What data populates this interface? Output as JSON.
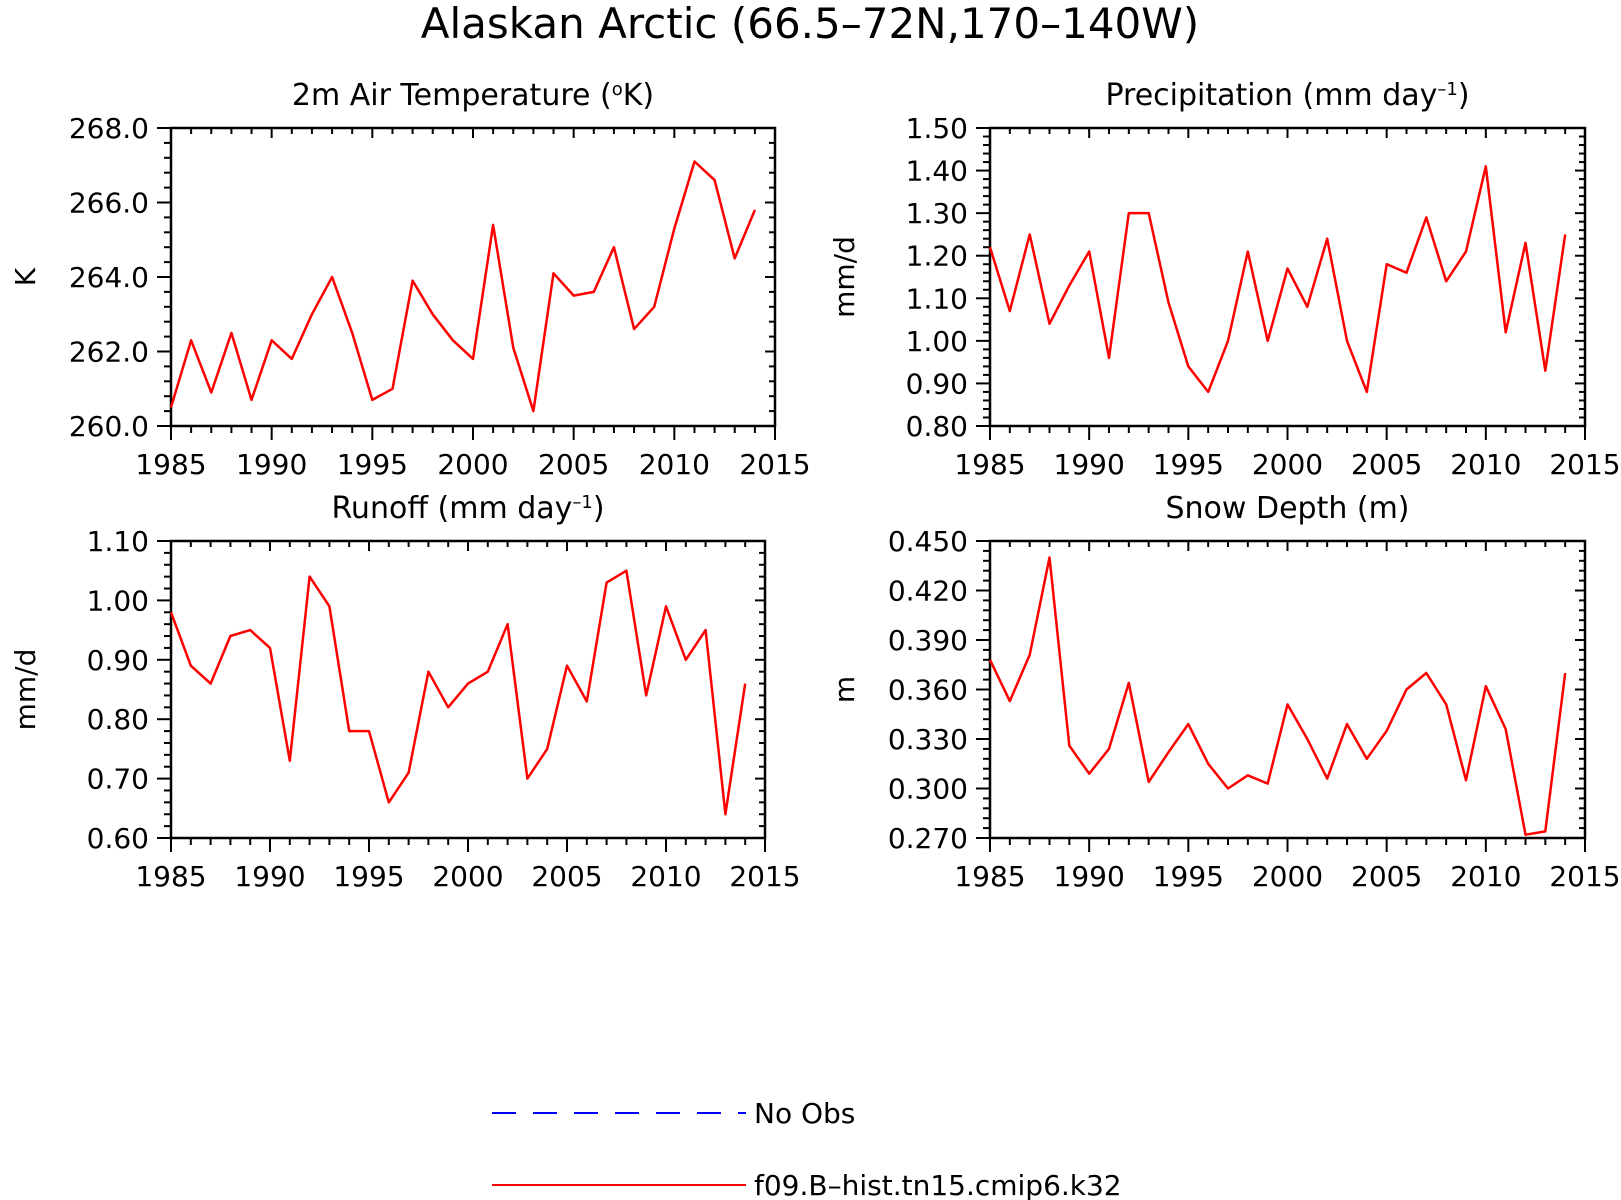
{
  "figure": {
    "title": "Alaskan Arctic (66.5–72N,170–140W)"
  },
  "legend": {
    "items": [
      {
        "label": "No Obs",
        "color": "#0000ff",
        "style": "dashed"
      },
      {
        "label": "f09.B–hist.tn15.cmip6.k32",
        "color": "#ff0000",
        "style": "solid"
      }
    ]
  },
  "chart_data": [
    {
      "type": "line",
      "title_prefix": "2m Air Temperature (",
      "title_unit_mid": "K",
      "title_suffix": ")",
      "title_degree": true,
      "xlabel": "",
      "ylabel": "K",
      "xlim": [
        1985,
        2015
      ],
      "ylim": [
        260.0,
        268.0
      ],
      "yticks": [
        "260.0",
        "262.0",
        "264.0",
        "266.0",
        "268.0"
      ],
      "xticks": [
        "1985",
        "1990",
        "1995",
        "2000",
        "2005",
        "2010",
        "2015"
      ],
      "x": [
        1985,
        1986,
        1987,
        1988,
        1989,
        1990,
        1991,
        1992,
        1993,
        1994,
        1995,
        1996,
        1997,
        1998,
        1999,
        2000,
        2001,
        2002,
        2003,
        2004,
        2005,
        2006,
        2007,
        2008,
        2009,
        2010,
        2011,
        2012,
        2013,
        2014
      ],
      "series": [
        {
          "name": "f09.B–hist.tn15.cmip6.k32",
          "color": "#ff0000",
          "values": [
            260.5,
            262.3,
            260.9,
            262.5,
            260.7,
            262.3,
            261.8,
            263.0,
            264.0,
            262.5,
            260.7,
            261.0,
            263.9,
            263.0,
            262.3,
            261.8,
            265.4,
            262.1,
            260.4,
            264.1,
            263.5,
            263.6,
            264.8,
            262.6,
            263.2,
            265.3,
            267.1,
            266.6,
            264.5,
            265.8
          ]
        }
      ]
    },
    {
      "type": "line",
      "title_prefix": "Precipitation (mm day",
      "title_sup": "–1",
      "title_suffix": ")",
      "xlabel": "",
      "ylabel": "mm/d",
      "xlim": [
        1985,
        2015
      ],
      "ylim": [
        0.8,
        1.5
      ],
      "yticks": [
        "0.80",
        "0.90",
        "1.00",
        "1.10",
        "1.20",
        "1.30",
        "1.40",
        "1.50"
      ],
      "xticks": [
        "1985",
        "1990",
        "1995",
        "2000",
        "2005",
        "2010",
        "2015"
      ],
      "x": [
        1985,
        1986,
        1987,
        1988,
        1989,
        1990,
        1991,
        1992,
        1993,
        1994,
        1995,
        1996,
        1997,
        1998,
        1999,
        2000,
        2001,
        2002,
        2003,
        2004,
        2005,
        2006,
        2007,
        2008,
        2009,
        2010,
        2011,
        2012,
        2013,
        2014
      ],
      "series": [
        {
          "name": "f09.B–hist.tn15.cmip6.k32",
          "color": "#ff0000",
          "values": [
            1.22,
            1.07,
            1.25,
            1.04,
            1.13,
            1.21,
            0.96,
            1.3,
            1.3,
            1.09,
            0.94,
            0.88,
            1.0,
            1.21,
            1.0,
            1.17,
            1.08,
            1.24,
            1.0,
            0.88,
            1.18,
            1.16,
            1.29,
            1.14,
            1.21,
            1.41,
            1.02,
            1.23,
            0.93,
            1.25
          ]
        }
      ]
    },
    {
      "type": "line",
      "title_prefix": "Runoff (mm day",
      "title_sup": "–1",
      "title_suffix": ")",
      "xlabel": "",
      "ylabel": "mm/d",
      "xlim": [
        1985,
        2015
      ],
      "ylim": [
        0.6,
        1.1
      ],
      "yticks": [
        "0.60",
        "0.70",
        "0.80",
        "0.90",
        "1.00",
        "1.10"
      ],
      "xticks": [
        "1985",
        "1990",
        "1995",
        "2000",
        "2005",
        "2010",
        "2015"
      ],
      "x": [
        1985,
        1986,
        1987,
        1988,
        1989,
        1990,
        1991,
        1992,
        1993,
        1994,
        1995,
        1996,
        1997,
        1998,
        1999,
        2000,
        2001,
        2002,
        2003,
        2004,
        2005,
        2006,
        2007,
        2008,
        2009,
        2010,
        2011,
        2012,
        2013,
        2014
      ],
      "series": [
        {
          "name": "f09.B–hist.tn15.cmip6.k32",
          "color": "#ff0000",
          "values": [
            0.98,
            0.89,
            0.86,
            0.94,
            0.95,
            0.92,
            0.73,
            1.04,
            0.99,
            0.78,
            0.78,
            0.66,
            0.71,
            0.88,
            0.82,
            0.86,
            0.88,
            0.96,
            0.7,
            0.75,
            0.89,
            0.83,
            1.03,
            1.05,
            0.84,
            0.99,
            0.9,
            0.95,
            0.64,
            0.86
          ]
        }
      ]
    },
    {
      "type": "line",
      "title_prefix": "Snow Depth (m)",
      "xlabel": "",
      "ylabel": "m",
      "xlim": [
        1985,
        2015
      ],
      "ylim": [
        0.27,
        0.45
      ],
      "yticks": [
        "0.270",
        "0.300",
        "0.330",
        "0.360",
        "0.390",
        "0.420",
        "0.450"
      ],
      "xticks": [
        "1985",
        "1990",
        "1995",
        "2000",
        "2005",
        "2010",
        "2015"
      ],
      "x": [
        1985,
        1986,
        1987,
        1988,
        1989,
        1990,
        1991,
        1992,
        1993,
        1994,
        1995,
        1996,
        1997,
        1998,
        1999,
        2000,
        2001,
        2002,
        2003,
        2004,
        2005,
        2006,
        2007,
        2008,
        2009,
        2010,
        2011,
        2012,
        2013,
        2014
      ],
      "series": [
        {
          "name": "f09.B–hist.tn15.cmip6.k32",
          "color": "#ff0000",
          "values": [
            0.378,
            0.353,
            0.381,
            0.44,
            0.326,
            0.309,
            0.324,
            0.364,
            0.304,
            0.322,
            0.339,
            0.315,
            0.3,
            0.308,
            0.303,
            0.351,
            0.33,
            0.306,
            0.339,
            0.318,
            0.335,
            0.36,
            0.37,
            0.351,
            0.305,
            0.362,
            0.336,
            0.272,
            0.274,
            0.37
          ]
        }
      ]
    }
  ]
}
